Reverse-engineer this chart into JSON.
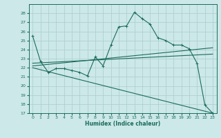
{
  "xlabel": "Humidex (Indice chaleur)",
  "bg_color": "#cce8e8",
  "grid_color": "#aacccc",
  "line_color": "#1a6b5a",
  "xlim": [
    -0.5,
    23.5
  ],
  "ylim": [
    17,
    29
  ],
  "xticks": [
    0,
    1,
    2,
    3,
    4,
    5,
    6,
    7,
    8,
    9,
    10,
    11,
    12,
    13,
    14,
    15,
    16,
    17,
    18,
    19,
    20,
    21,
    22,
    23
  ],
  "yticks": [
    17,
    18,
    19,
    20,
    21,
    22,
    23,
    24,
    25,
    26,
    27,
    28
  ],
  "line1_x": [
    0,
    1,
    2,
    3,
    4,
    5,
    6,
    7,
    8,
    9,
    10,
    11,
    12,
    13,
    14,
    15,
    16,
    17,
    18,
    19,
    20,
    21,
    22,
    23
  ],
  "line1_y": [
    25.5,
    22.7,
    21.5,
    21.9,
    21.9,
    21.7,
    21.5,
    21.1,
    23.2,
    22.2,
    24.5,
    26.5,
    26.6,
    28.1,
    27.4,
    26.8,
    25.3,
    25.0,
    24.5,
    24.5,
    24.1,
    22.5,
    17.9,
    17.0
  ],
  "line2_x": [
    0,
    23
  ],
  "line2_y": [
    22.5,
    23.5
  ],
  "line3_x": [
    0,
    23
  ],
  "line3_y": [
    22.2,
    24.2
  ],
  "line4_x": [
    0,
    23
  ],
  "line4_y": [
    22.0,
    17.0
  ],
  "marker": "+"
}
